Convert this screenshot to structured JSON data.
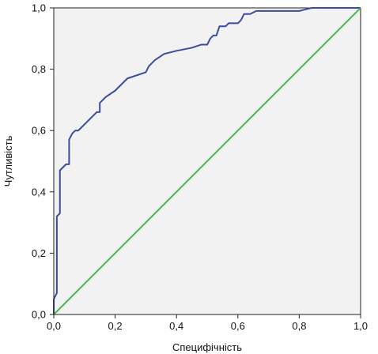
{
  "chart_data": {
    "type": "line",
    "title": "",
    "xlabel": "Специфічність",
    "ylabel": "Чутливість",
    "xlim": [
      0,
      1
    ],
    "ylim": [
      0,
      1
    ],
    "x_ticks": [
      0,
      0.2,
      0.4,
      0.6,
      0.8,
      1.0
    ],
    "y_ticks": [
      0,
      0.2,
      0.4,
      0.6,
      0.8,
      1.0
    ],
    "x_tick_labels": [
      "0,0",
      "0,2",
      "0,4",
      "0,6",
      "0,8",
      "1,0"
    ],
    "y_tick_labels": [
      "0,0",
      "0,2",
      "0,4",
      "0,6",
      "0,8",
      "1,0"
    ],
    "grid": false,
    "plot_background": "#f2f2f2",
    "series": [
      {
        "color": "#3b4ba0",
        "x": [
          0.0,
          0.0,
          0.01,
          0.01,
          0.02,
          0.02,
          0.03,
          0.03,
          0.04,
          0.05,
          0.05,
          0.06,
          0.07,
          0.08,
          0.1,
          0.11,
          0.12,
          0.13,
          0.14,
          0.15,
          0.15,
          0.17,
          0.2,
          0.22,
          0.24,
          0.3,
          0.31,
          0.33,
          0.36,
          0.4,
          0.45,
          0.48,
          0.5,
          0.51,
          0.52,
          0.53,
          0.54,
          0.55,
          0.56,
          0.57,
          0.6,
          0.61,
          0.62,
          0.64,
          0.66,
          0.69,
          0.72,
          0.75,
          0.8,
          0.82,
          0.84,
          0.86,
          0.9,
          0.95,
          1.0
        ],
        "y": [
          0.0,
          0.05,
          0.07,
          0.32,
          0.33,
          0.47,
          0.48,
          0.48,
          0.49,
          0.49,
          0.57,
          0.59,
          0.6,
          0.6,
          0.62,
          0.63,
          0.64,
          0.65,
          0.66,
          0.66,
          0.69,
          0.71,
          0.73,
          0.75,
          0.77,
          0.79,
          0.81,
          0.83,
          0.85,
          0.86,
          0.87,
          0.88,
          0.88,
          0.9,
          0.91,
          0.91,
          0.94,
          0.94,
          0.94,
          0.95,
          0.95,
          0.96,
          0.98,
          0.98,
          0.99,
          0.99,
          0.99,
          0.99,
          0.99,
          0.995,
          1.0,
          1.0,
          1.0,
          1.0,
          1.0
        ]
      },
      {
        "color": "#3cb043",
        "x": [
          0,
          1
        ],
        "y": [
          0,
          1
        ]
      }
    ]
  }
}
